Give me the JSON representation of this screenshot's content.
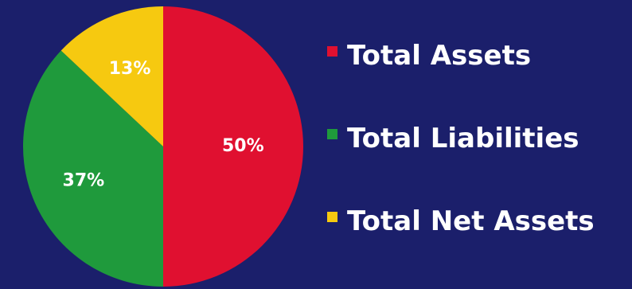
{
  "chart_data": {
    "type": "pie",
    "title": "",
    "start_angle_deg": 0,
    "direction": "clockwise",
    "legend_position": "right",
    "slices": [
      {
        "label": "Total Assets",
        "value": 50,
        "display": "50%",
        "color": "#e01030"
      },
      {
        "label": "Total Liabilities",
        "value": 37,
        "display": "37%",
        "color": "#1f9a3c"
      },
      {
        "label": "Total Net Assets",
        "value": 13,
        "display": "13%",
        "color": "#f6c910"
      }
    ]
  },
  "colors": {
    "background": "#1b1f6b",
    "text": "#ffffff"
  }
}
